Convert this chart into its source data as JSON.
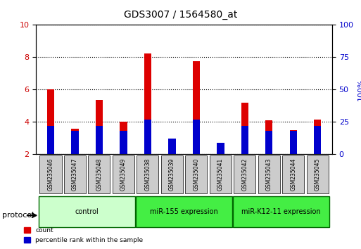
{
  "title": "GDS3007 / 1564580_at",
  "samples": [
    "GSM235046",
    "GSM235047",
    "GSM235048",
    "GSM235049",
    "GSM235038",
    "GSM235039",
    "GSM235040",
    "GSM235041",
    "GSM235042",
    "GSM235043",
    "GSM235044",
    "GSM235045"
  ],
  "count_values": [
    6.0,
    3.6,
    5.35,
    4.0,
    8.25,
    2.55,
    7.75,
    2.1,
    5.2,
    4.1,
    3.5,
    4.15
  ],
  "percentile_values": [
    0.22,
    0.18,
    0.22,
    0.18,
    0.27,
    0.12,
    0.27,
    0.09,
    0.22,
    0.18,
    0.18,
    0.22
  ],
  "ylim_left": [
    2,
    10
  ],
  "ylim_right": [
    0,
    100
  ],
  "yticks_left": [
    2,
    4,
    6,
    8,
    10
  ],
  "yticks_right": [
    0,
    25,
    50,
    75,
    100
  ],
  "bar_color_red": "#dd0000",
  "bar_color_blue": "#0000cc",
  "bar_width": 0.5,
  "groups": [
    {
      "label": "control",
      "indices": [
        0,
        1,
        2,
        3
      ],
      "color": "#ccffcc",
      "dark_color": "#006600"
    },
    {
      "label": "miR-155 expression",
      "indices": [
        4,
        5,
        6,
        7
      ],
      "color": "#00ee00",
      "dark_color": "#006600"
    },
    {
      "label": "miR-K12-11 expression",
      "indices": [
        8,
        9,
        10,
        11
      ],
      "color": "#00ee00",
      "dark_color": "#006600"
    }
  ],
  "xlabel_color_left": "#cc0000",
  "xlabel_color_right": "#0000cc",
  "background_color": "#ffffff",
  "plot_bg": "#ffffff",
  "grid_color": "#000000",
  "tick_area_bg": "#cccccc",
  "protocol_label": "protocol",
  "legend_count": "count",
  "legend_pct": "percentile rank within the sample"
}
